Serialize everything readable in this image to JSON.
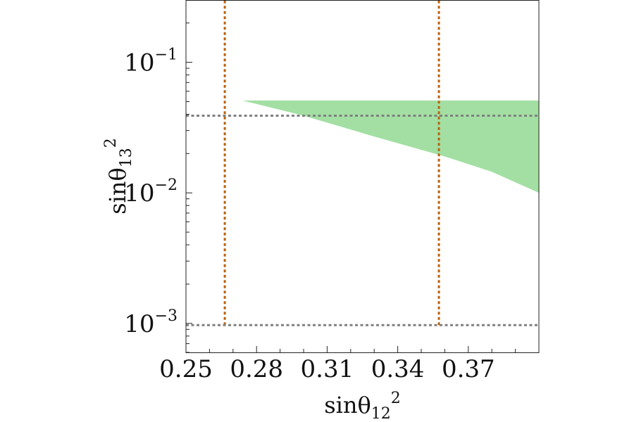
{
  "chart_data": {
    "type": "area",
    "title": "",
    "xlabel": {
      "base": "sinθ",
      "sub": "12",
      "sup": "2"
    },
    "ylabel": {
      "base": "sinθ",
      "sub": "13",
      "sup": "2"
    },
    "xlim": [
      0.25,
      0.4
    ],
    "ylim": [
      0.0006,
      0.3
    ],
    "yscale": "log",
    "x_ticks": [
      {
        "value": 0.25,
        "label": "0.25"
      },
      {
        "value": 0.28,
        "label": "0.28"
      },
      {
        "value": 0.31,
        "label": "0.31"
      },
      {
        "value": 0.34,
        "label": "0.34"
      },
      {
        "value": 0.37,
        "label": "0.37"
      }
    ],
    "y_ticks": [
      {
        "value": 0.001,
        "base": "10",
        "exp": "−3"
      },
      {
        "value": 0.01,
        "base": "10",
        "exp": "−2"
      },
      {
        "value": 0.1,
        "base": "10",
        "exp": "−1"
      }
    ],
    "grid": false,
    "series": [
      {
        "type": "region",
        "color": "#a3dfa3",
        "upper": [
          [
            0.274,
            0.051
          ],
          [
            0.4,
            0.051
          ]
        ],
        "lower": [
          [
            0.274,
            0.051
          ],
          [
            0.3,
            0.039
          ],
          [
            0.33,
            0.027
          ],
          [
            0.36,
            0.019
          ],
          [
            0.38,
            0.0145
          ],
          [
            0.4,
            0.01
          ]
        ]
      }
    ],
    "reference_lines": [
      {
        "orientation": "vertical",
        "value": 0.2665,
        "from": 0.00097,
        "to": 0.3,
        "color": "#b8620e",
        "style": "dotted"
      },
      {
        "orientation": "vertical",
        "value": 0.3575,
        "from": 0.00097,
        "to": 0.3,
        "color": "#b8620e",
        "style": "dotted"
      },
      {
        "orientation": "horizontal",
        "value": 0.039,
        "from": 0.25,
        "to": 0.4,
        "color": "#808080",
        "style": "dotted"
      },
      {
        "orientation": "horizontal",
        "value": 0.00097,
        "from": 0.25,
        "to": 0.4,
        "color": "#808080",
        "style": "dotted"
      }
    ]
  }
}
